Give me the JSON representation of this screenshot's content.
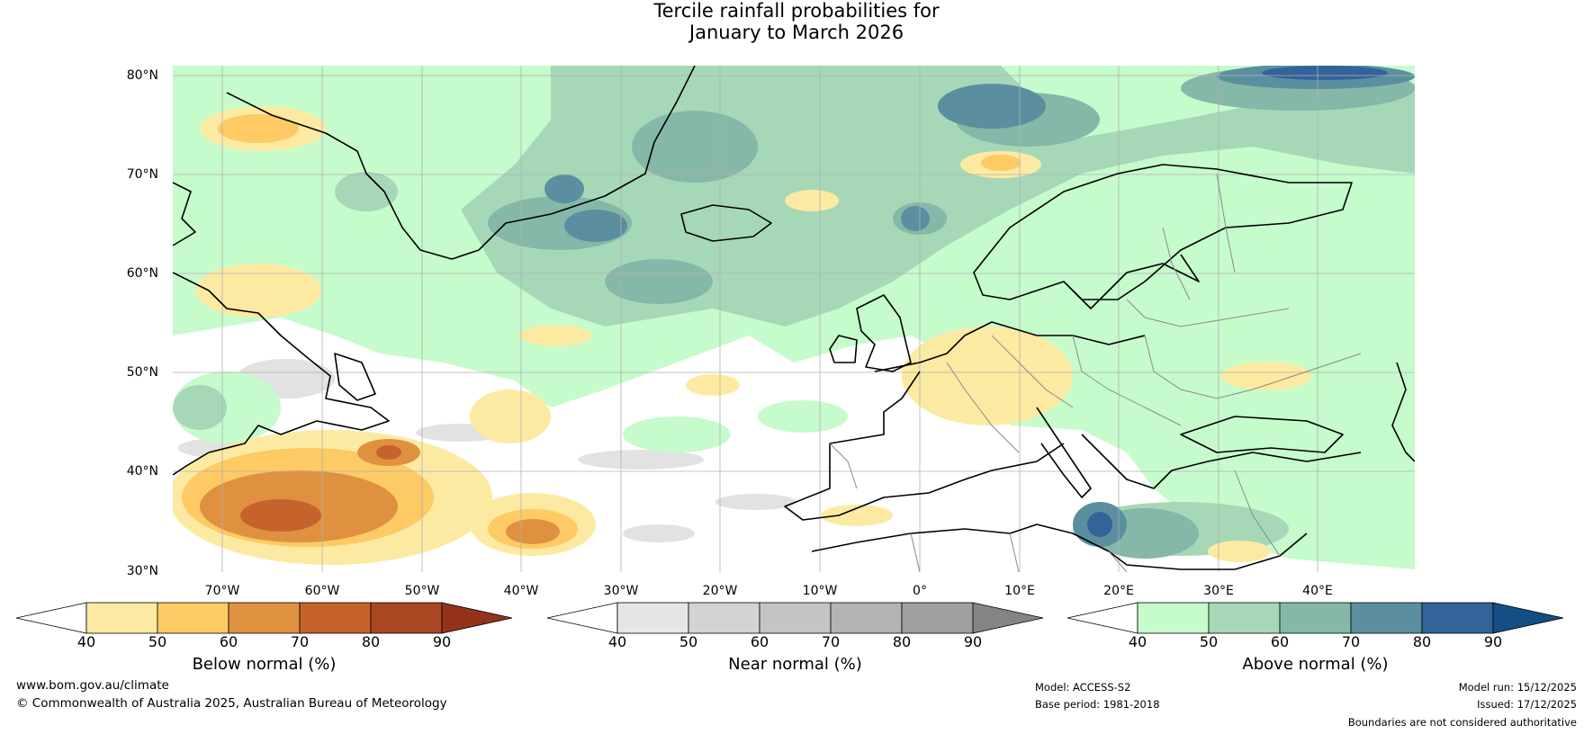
{
  "title": {
    "line1": "Tercile rainfall probabilities for",
    "line2": "January to March 2026"
  },
  "map": {
    "lat_labels": [
      "80°N",
      "70°N",
      "60°N",
      "50°N",
      "40°N",
      "30°N"
    ],
    "lon_labels": [
      "70°W",
      "60°W",
      "50°W",
      "40°W",
      "30°W",
      "20°W",
      "10°W",
      "0°",
      "10°E",
      "20°E",
      "30°E",
      "40°E"
    ],
    "lat_range": [
      30,
      81
    ],
    "lon_range": [
      -77,
      48
    ],
    "gridlines": true,
    "coastline_color": "#000000",
    "border_color": "#888888"
  },
  "colorbars": [
    {
      "label": "Below normal (%)",
      "ticks": [
        "40",
        "50",
        "60",
        "70",
        "80",
        "90"
      ],
      "low_color": "#ffffff",
      "colors": [
        "#fdeaa2",
        "#fdca64",
        "#e0913f",
        "#c6622b",
        "#ab4623"
      ],
      "high_color": "#95321a"
    },
    {
      "label": "Near normal (%)",
      "ticks": [
        "40",
        "50",
        "60",
        "70",
        "80",
        "90"
      ],
      "low_color": "#ffffff",
      "colors": [
        "#e6e6e6",
        "#d3d3d3",
        "#c4c4c4",
        "#b4b4b4",
        "#a0a0a0"
      ],
      "high_color": "#848484"
    },
    {
      "label": "Above normal (%)",
      "ticks": [
        "40",
        "50",
        "60",
        "70",
        "80",
        "90"
      ],
      "low_color": "#ffffff",
      "colors": [
        "#c6fbcc",
        "#a6d8b8",
        "#85b8a8",
        "#5b8f9f",
        "#33639a"
      ],
      "high_color": "#144e84"
    }
  ],
  "footer": {
    "website": "www.bom.gov.au/climate",
    "copyright": "© Commonwealth of Australia 2025, Australian Bureau of Meteorology",
    "model": "Model: ACCESS-S2",
    "base_period": "Base period: 1981-2018",
    "model_run": "Model run: 15/12/2025",
    "issued": "Issued: 17/12/2025",
    "disclaimer": "Boundaries are not considered authoritative"
  }
}
